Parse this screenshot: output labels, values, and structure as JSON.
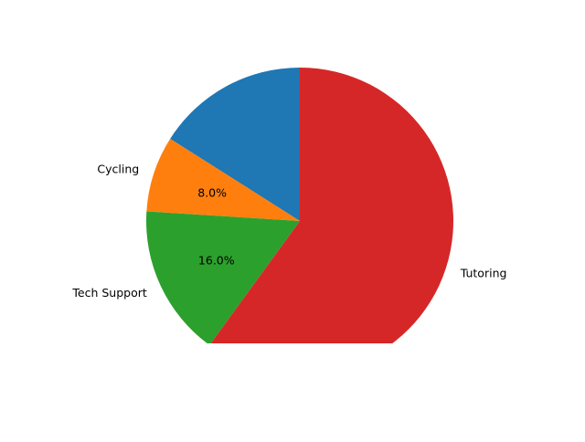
{
  "chart_data": {
    "type": "pie",
    "slices": [
      {
        "label": "",
        "value": 16.0,
        "pct_label": "",
        "color": "#1f77b4"
      },
      {
        "label": "Cycling",
        "value": 8.0,
        "pct_label": "8.0%",
        "color": "#ff7f0e"
      },
      {
        "label": "Tech Support",
        "value": 16.0,
        "pct_label": "16.0%",
        "color": "#2ca02c"
      },
      {
        "label": "Tutoring",
        "value": 60.0,
        "pct_label": "",
        "color": "#d62728"
      }
    ],
    "start_angle_deg": 90,
    "direction": "counterclockwise",
    "clipped_at_bottom": true,
    "legend": "none"
  }
}
